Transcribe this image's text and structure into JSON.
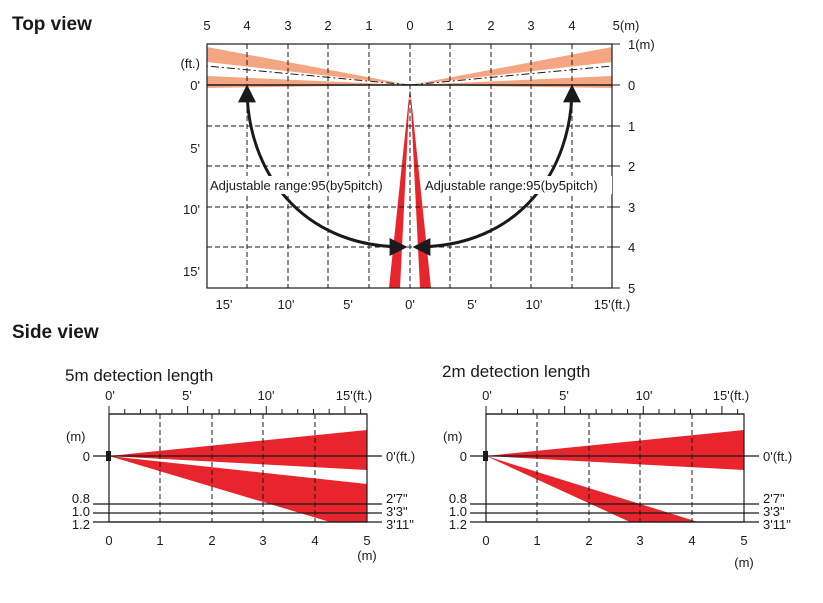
{
  "top_view": {
    "title": "Top view",
    "top_ticks": [
      "5",
      "4",
      "3",
      "2",
      "1",
      "0",
      "1",
      "2",
      "3",
      "4",
      "5(m)"
    ],
    "right_ticks": [
      "1(m)",
      "0",
      "1",
      "2",
      "3",
      "4",
      "5"
    ],
    "left_labels": [
      "(ft.)",
      "0'",
      "5'",
      "10'",
      "15'"
    ],
    "bottom_ticks": [
      "15'",
      "10'",
      "5'",
      "0'",
      "5'",
      "10'",
      "15'(ft.)"
    ],
    "range_left": "Adjustable range:95(by5pitch)",
    "range_right": "Adjustable range:95(by5pitch)"
  },
  "side_view": {
    "title": "Side view",
    "panels": [
      {
        "title": "5m detection length",
        "ft_ticks": [
          "0'",
          "5'",
          "10'",
          "15'(ft.)"
        ],
        "m_label": "(m)",
        "left_ticks": [
          "0",
          "0.8",
          "1.0",
          "1.2"
        ],
        "right_ticks": [
          "0'(ft.)",
          "2'7\"",
          "3'3\"",
          "3'11\""
        ],
        "bottom_ticks": [
          "0",
          "1",
          "2",
          "3",
          "4",
          "5"
        ],
        "bottom_unit": "(m)"
      },
      {
        "title": "2m detection length",
        "ft_ticks": [
          "0'",
          "5'",
          "10'",
          "15'(ft.)"
        ],
        "m_label": "(m)",
        "left_ticks": [
          "0",
          "0.8",
          "1.0",
          "1.2"
        ],
        "right_ticks": [
          "0'(ft.)",
          "2'7\"",
          "3'3\"",
          "3'11\""
        ],
        "bottom_ticks": [
          "0",
          "1",
          "2",
          "3",
          "4",
          "5"
        ],
        "bottom_unit": "(m)"
      }
    ]
  },
  "colors": {
    "beam": "#e8242c",
    "beam_light": "#f4a582",
    "line": "#1a1a1a"
  }
}
